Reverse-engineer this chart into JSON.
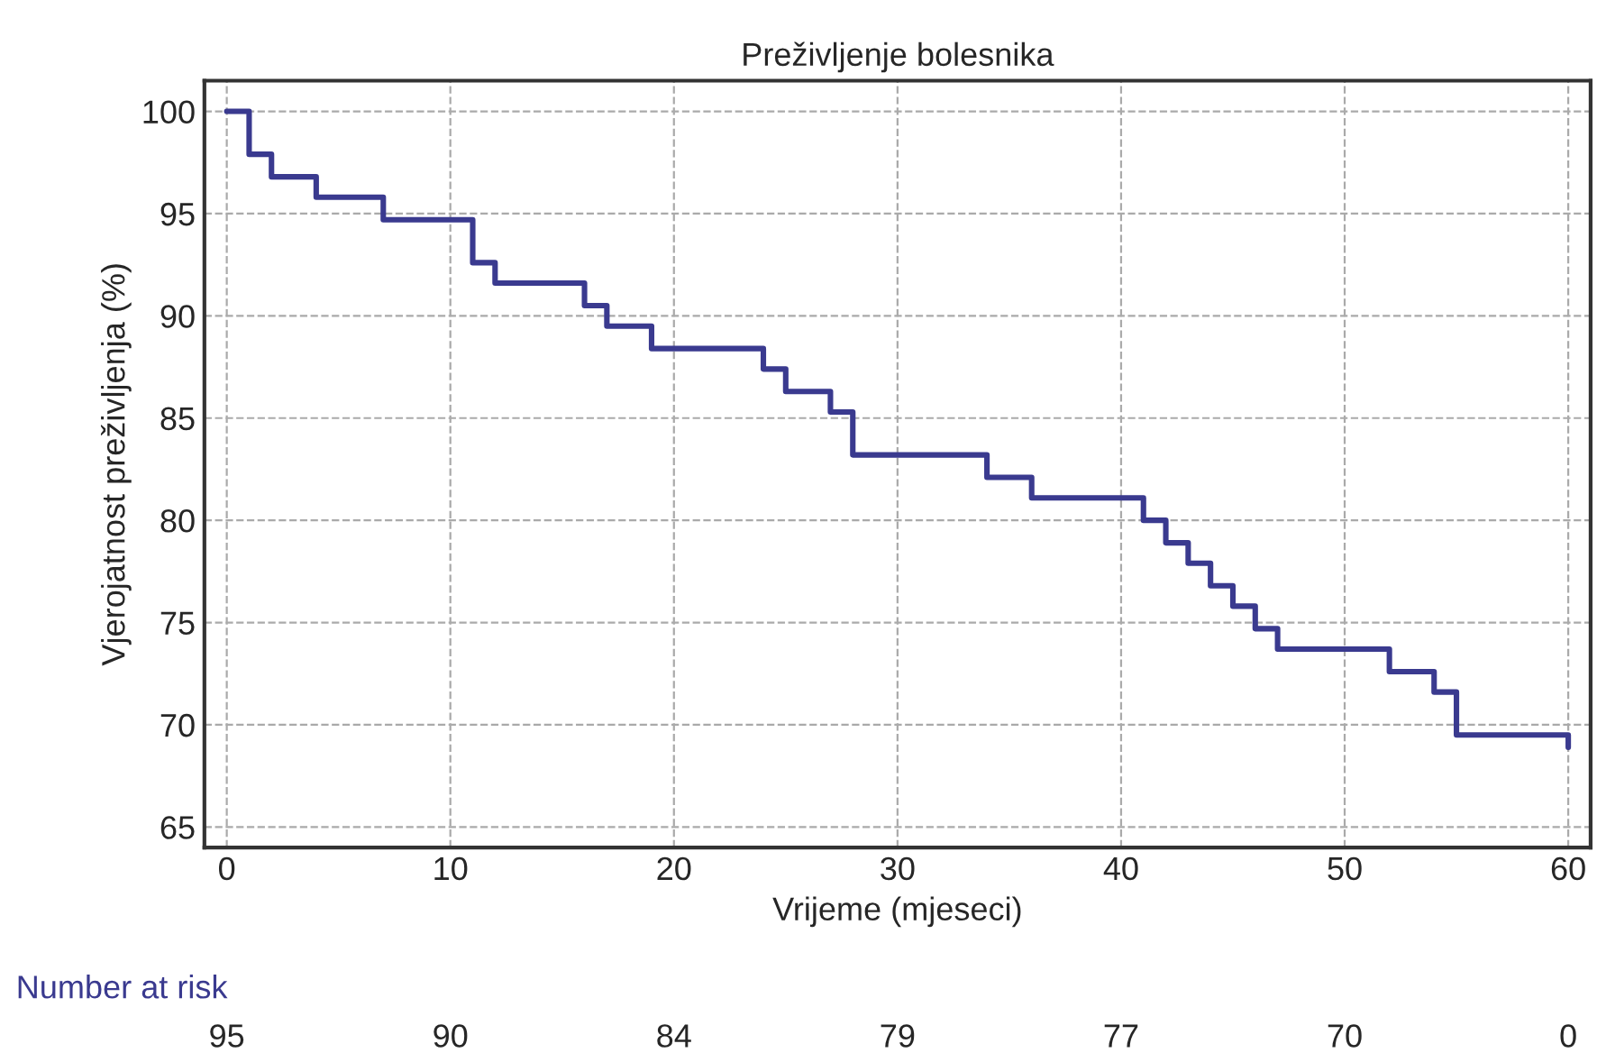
{
  "chart_data": {
    "type": "step",
    "title": "Preživljenje bolesnika",
    "xlabel": "Vrijeme (mjeseci)",
    "ylabel": "Vjerojatnost preživljenja (%)",
    "x": [
      0,
      1,
      2,
      4,
      7,
      11,
      12,
      16,
      17,
      19,
      24,
      25,
      27,
      28,
      34,
      36,
      41,
      42,
      43,
      44,
      45,
      46,
      47,
      52,
      54,
      55,
      60
    ],
    "series": [
      {
        "color": "#3a3a8f",
        "values": [
          100,
          97.9,
          96.8,
          95.8,
          94.7,
          92.6,
          91.6,
          90.5,
          89.5,
          88.4,
          87.4,
          86.3,
          85.3,
          83.2,
          82.1,
          81.1,
          80.0,
          78.9,
          77.9,
          76.8,
          75.8,
          74.7,
          73.7,
          72.6,
          71.6,
          69.5,
          68.9
        ]
      }
    ],
    "xlim": [
      -1,
      61
    ],
    "ylim": [
      64,
      101.5
    ],
    "xticks": [
      0,
      10,
      20,
      30,
      40,
      50,
      60
    ],
    "yticks": [
      65,
      70,
      75,
      80,
      85,
      90,
      95,
      100
    ],
    "grid": true,
    "line_style": "solid",
    "marker": "none",
    "annotations": [
      "Number at risk",
      "95",
      "90",
      "84",
      "79",
      "77",
      "70",
      "0"
    ]
  }
}
